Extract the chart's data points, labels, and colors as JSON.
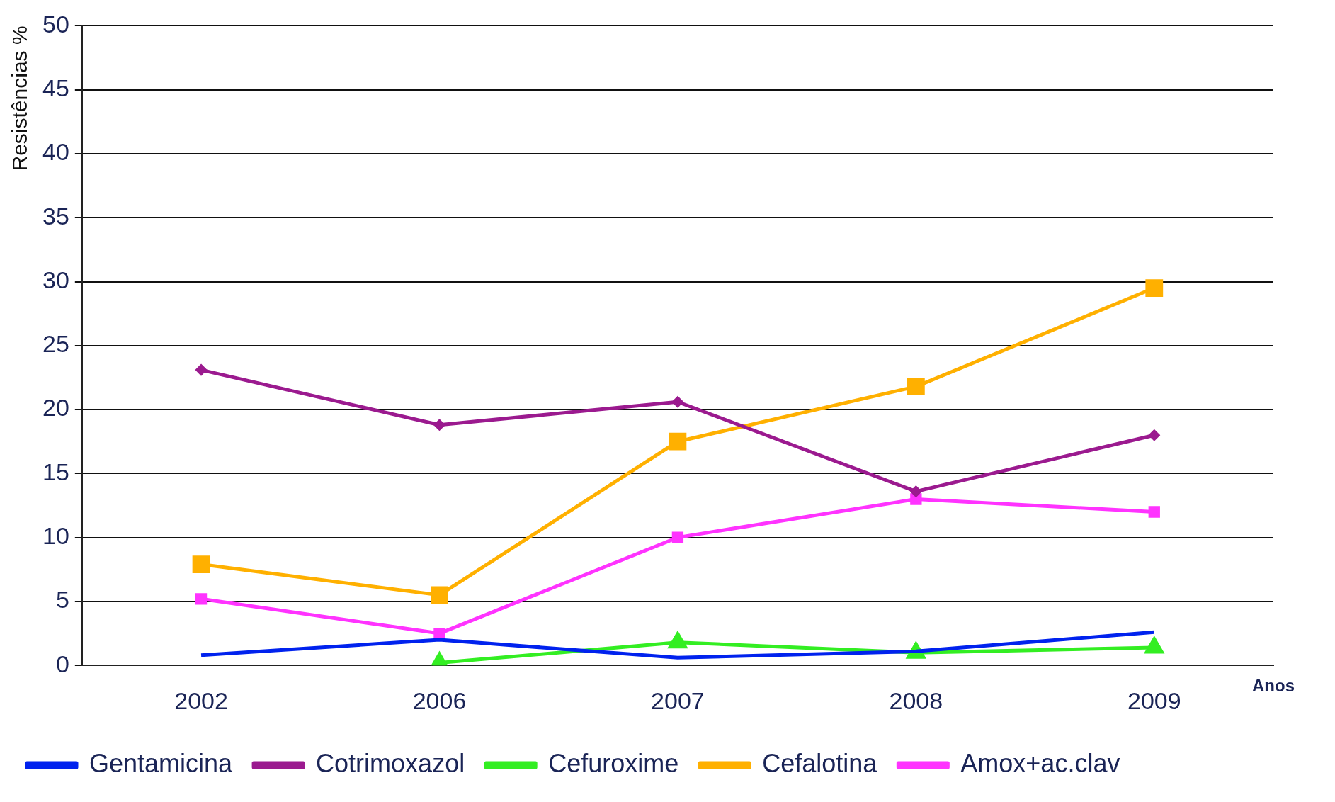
{
  "chart_data": {
    "type": "line",
    "ylabel": "Resistências %",
    "xlabel": "Anos",
    "categories": [
      "2002",
      "2006",
      "2007",
      "2008",
      "2009"
    ],
    "ylim": [
      0,
      50
    ],
    "yticks": [
      0,
      5,
      10,
      15,
      20,
      25,
      30,
      35,
      40,
      45,
      50
    ],
    "grid": "y",
    "legend": "bottom",
    "line_style": "solid",
    "series": [
      {
        "name": "Amox+ac.clav",
        "color": "#ff33ff",
        "marker": "square",
        "values": [
          5.2,
          2.5,
          10,
          13,
          12
        ]
      },
      {
        "name": "Cefalotina",
        "color": "#ffb000",
        "marker": "square",
        "values": [
          7.9,
          5.5,
          17.5,
          21.8,
          29.5
        ]
      },
      {
        "name": "Cefuroxime",
        "color": "#33ee22",
        "marker": "triangle",
        "values": [
          null,
          0.2,
          1.8,
          1,
          1.4
        ]
      },
      {
        "name": "Cotrimoxazol",
        "color": "#9b1a8f",
        "marker": "diamond",
        "values": [
          23.1,
          18.8,
          20.6,
          13.6,
          18
        ]
      },
      {
        "name": "Gentamicina",
        "color": "#0022ee",
        "marker": "none",
        "values": [
          0.8,
          2,
          0.6,
          1.1,
          2.6
        ]
      }
    ]
  }
}
